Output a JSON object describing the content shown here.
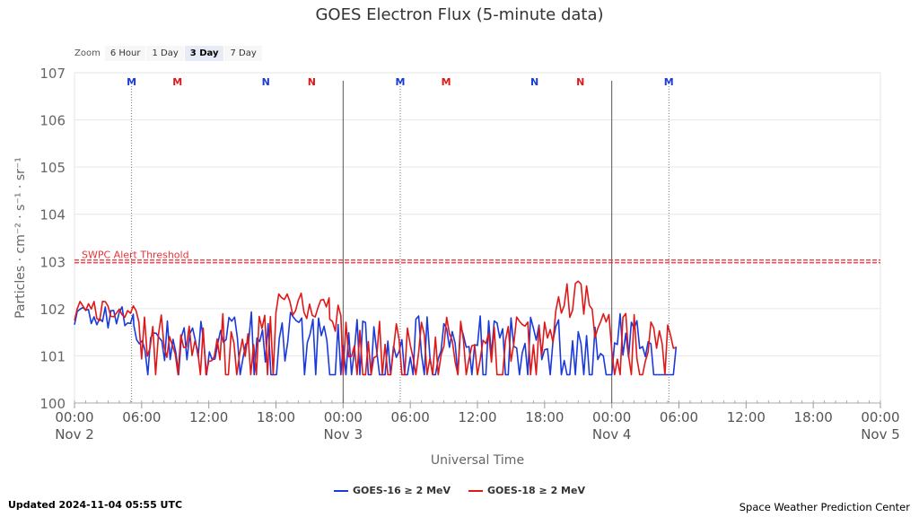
{
  "chart_data": {
    "type": "line",
    "title": "GOES Electron Flux (5-minute data)",
    "xlabel": "Universal Time",
    "ylabel": "Particles · cm⁻² · s⁻¹ · sr⁻¹",
    "x_range_hours": [
      0,
      72
    ],
    "y_range_log10": [
      0,
      7
    ],
    "y_scale": "log",
    "y_tick_labels": [
      "100",
      "101",
      "102",
      "103",
      "104",
      "105",
      "106",
      "107"
    ],
    "x_ticks": [
      {
        "t": 0,
        "time": "00:00",
        "date": "Nov 2"
      },
      {
        "t": 6,
        "time": "06:00",
        "date": ""
      },
      {
        "t": 12,
        "time": "12:00",
        "date": ""
      },
      {
        "t": 18,
        "time": "18:00",
        "date": ""
      },
      {
        "t": 24,
        "time": "00:00",
        "date": "Nov 3"
      },
      {
        "t": 30,
        "time": "06:00",
        "date": ""
      },
      {
        "t": 36,
        "time": "12:00",
        "date": ""
      },
      {
        "t": 42,
        "time": "18:00",
        "date": ""
      },
      {
        "t": 48,
        "time": "00:00",
        "date": "Nov 4"
      },
      {
        "t": 54,
        "time": "06:00",
        "date": ""
      },
      {
        "t": 60,
        "time": "12:00",
        "date": ""
      },
      {
        "t": 66,
        "time": "18:00",
        "date": ""
      },
      {
        "t": 72,
        "time": "00:00",
        "date": "Nov 5"
      }
    ],
    "threshold": {
      "label": "SWPC Alert Threshold",
      "value_log10": 3,
      "color": "#e8313a"
    },
    "day_boundaries_hours": [
      24,
      48
    ],
    "markers": [
      {
        "t": 5.1,
        "label": "M",
        "color": "#1a3adb",
        "line": true
      },
      {
        "t": 9.2,
        "label": "M",
        "color": "#e01818",
        "line": false
      },
      {
        "t": 17.1,
        "label": "N",
        "color": "#1a3adb",
        "line": false
      },
      {
        "t": 21.2,
        "label": "N",
        "color": "#e01818",
        "line": false
      },
      {
        "t": 29.1,
        "label": "M",
        "color": "#1a3adb",
        "line": true
      },
      {
        "t": 33.2,
        "label": "M",
        "color": "#e01818",
        "line": false
      },
      {
        "t": 41.1,
        "label": "N",
        "color": "#1a3adb",
        "line": false
      },
      {
        "t": 45.2,
        "label": "N",
        "color": "#e01818",
        "line": false
      },
      {
        "t": 53.1,
        "label": "M",
        "color": "#1a3adb",
        "line": true
      }
    ],
    "series": [
      {
        "name": "GOES-16 ≥ 2 MeV",
        "color": "#1a3adb",
        "segments": [
          {
            "t0": 0,
            "t1": 5.3,
            "lo": 1.58,
            "hi": 2.1,
            "floor_p": 0.0
          },
          {
            "t0": 5.3,
            "t1": 24,
            "lo": 0.85,
            "hi": 1.95,
            "floor_p": 0.22
          },
          {
            "t0": 24,
            "t1": 48,
            "lo": 0.9,
            "hi": 1.85,
            "floor_p": 0.3
          },
          {
            "t0": 48,
            "t1": 54,
            "lo": 0.95,
            "hi": 2.05,
            "floor_p": 0.25
          }
        ]
      },
      {
        "name": "GOES-18 ≥ 2 MeV",
        "color": "#e01818",
        "segments": [
          {
            "t0": 0,
            "t1": 6,
            "lo": 1.72,
            "hi": 2.2,
            "floor_p": 0.0
          },
          {
            "t0": 6,
            "t1": 18,
            "lo": 0.85,
            "hi": 1.9,
            "floor_p": 0.25
          },
          {
            "t0": 18,
            "t1": 22.8,
            "lo": 1.75,
            "hi": 2.35,
            "floor_p": 0.0
          },
          {
            "t0": 22.8,
            "t1": 24,
            "lo": 1.5,
            "hi": 2.1,
            "floor_p": 0.0
          },
          {
            "t0": 24,
            "t1": 43,
            "lo": 0.85,
            "hi": 1.85,
            "floor_p": 0.3
          },
          {
            "t0": 43,
            "t1": 46.5,
            "lo": 1.8,
            "hi": 2.6,
            "floor_p": 0.0
          },
          {
            "t0": 46.5,
            "t1": 48,
            "lo": 1.3,
            "hi": 1.95,
            "floor_p": 0.0
          },
          {
            "t0": 48,
            "t1": 54,
            "lo": 0.85,
            "hi": 1.9,
            "floor_p": 0.25
          }
        ]
      }
    ],
    "floor_log10": 0.6,
    "grid": true,
    "legend_position": "bottom-center"
  },
  "zoom": {
    "label": "Zoom",
    "buttons": [
      "6 Hour",
      "1 Day",
      "3 Day",
      "7 Day"
    ],
    "active": "3 Day"
  },
  "footer": {
    "updated": "Updated 2024-11-04 05:55 UTC",
    "credit": "Space Weather Prediction Center"
  },
  "legend": {
    "items": [
      "GOES-16 ≥ 2 MeV",
      "GOES-18 ≥ 2 MeV"
    ],
    "colors": [
      "#1a3adb",
      "#e01818"
    ]
  }
}
